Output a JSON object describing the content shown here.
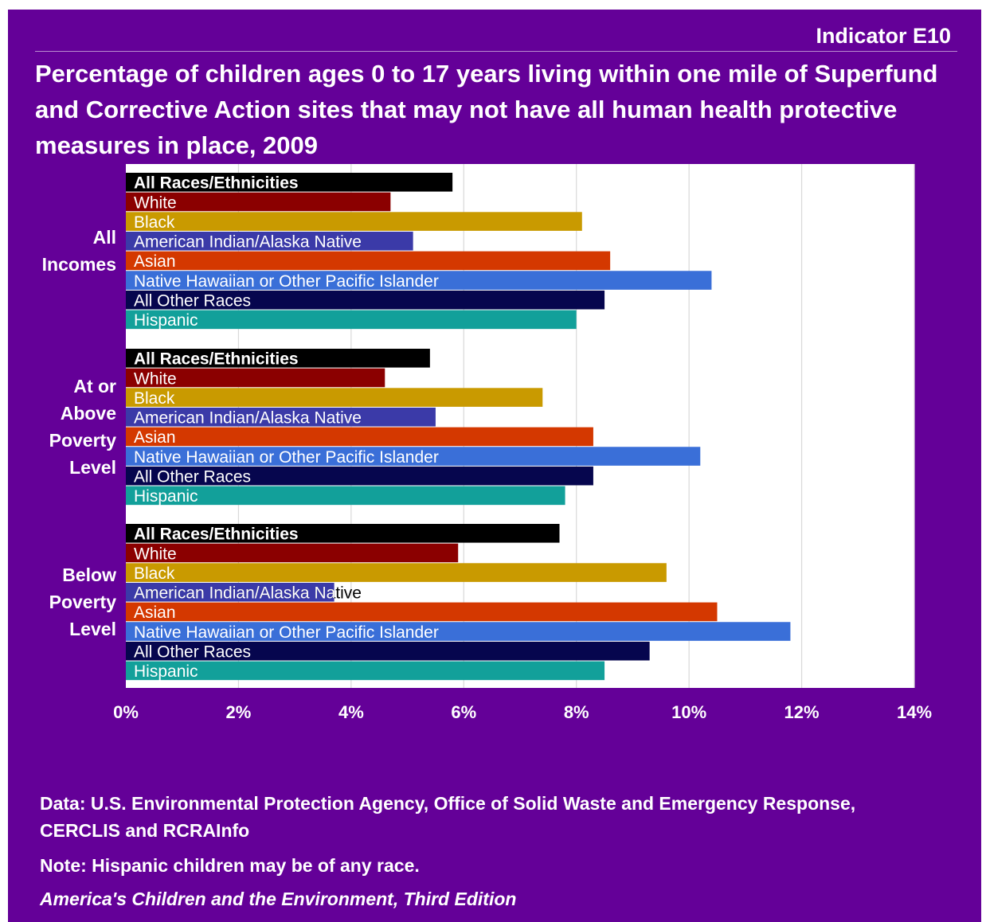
{
  "header": {
    "indicator": "Indicator E10",
    "title": "Percentage of children ages 0 to 17 years living within one mile of Superfund and Corrective Action sites that may not have all human health protective measures in place, 2009"
  },
  "footer": {
    "source": "Data: U.S. Environmental Protection Agency, Office of Solid Waste and Emergency Response, CERCLIS and RCRAInfo",
    "note": "Note: Hispanic children may be of any race.",
    "edition": "America's Children and the Environment, Third Edition"
  },
  "chart_data": {
    "type": "bar",
    "orientation": "horizontal",
    "title": "",
    "xlabel": "",
    "ylabel": "",
    "xlim": [
      0,
      14
    ],
    "x_ticks": [
      "0%",
      "2%",
      "4%",
      "6%",
      "8%",
      "10%",
      "12%",
      "14%"
    ],
    "grid": "vertical",
    "legend": "none",
    "bar_labels": "inside-left",
    "categories": [
      "All Races/Ethnicities",
      "White",
      "Black",
      "American Indian/Alaska Native",
      "Asian",
      "Native Hawaiian or Other Pacific Islander",
      "All Other Races",
      "Hispanic"
    ],
    "category_colors": [
      "#000000",
      "#8b0000",
      "#c99a00",
      "#3b3aa8",
      "#d43800",
      "#3a6fd8",
      "#06064e",
      "#12a09a"
    ],
    "groups": [
      {
        "label_lines": [
          "All",
          "Incomes"
        ],
        "values": [
          5.8,
          4.7,
          8.1,
          5.1,
          8.6,
          10.4,
          8.5,
          8.0
        ]
      },
      {
        "label_lines": [
          "At or",
          "Above",
          "Poverty",
          "Level"
        ],
        "values": [
          5.4,
          4.6,
          7.4,
          5.5,
          8.3,
          10.2,
          8.3,
          7.8
        ]
      },
      {
        "label_lines": [
          "Below",
          "Poverty",
          "Level"
        ],
        "values": [
          7.7,
          5.9,
          9.6,
          3.7,
          10.5,
          11.8,
          9.3,
          8.5
        ]
      }
    ]
  }
}
